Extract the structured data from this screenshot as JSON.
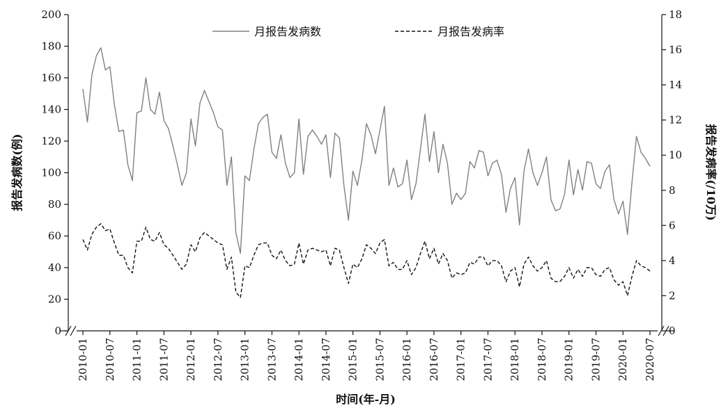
{
  "chart_data": {
    "type": "line",
    "xlabel": "时间(年-月)",
    "ylabel_left": "报告发病数(例)",
    "ylabel_right": "报告发病率(/10万)",
    "ylim_left": [
      0,
      200
    ],
    "ylim_right": [
      0,
      18
    ],
    "left_ticks": [
      "0",
      "20",
      "40",
      "60",
      "80",
      "100",
      "120",
      "140",
      "160",
      "180",
      "200"
    ],
    "right_ticks": [
      "0",
      "2",
      "4",
      "6",
      "8",
      "10",
      "12",
      "14",
      "16",
      "18"
    ],
    "x_tick_labels": [
      "2010-01",
      "2010-07",
      "2011-01",
      "2011-07",
      "2012-01",
      "2012-07",
      "2013-01",
      "2013-07",
      "2014-01",
      "2014-07",
      "2015-01",
      "2015-07",
      "2016-01",
      "2016-07",
      "2017-01",
      "2017-07",
      "2018-01",
      "2018-07",
      "2019-01",
      "2019-07",
      "2020-01",
      "2020-07"
    ],
    "legend_position": "top",
    "grid": false,
    "series": [
      {
        "name": "月报告发病数",
        "axis": "left",
        "style": "solid",
        "color": "#808080",
        "values": [
          153,
          132,
          162,
          174,
          179,
          165,
          167,
          143,
          126,
          127,
          105,
          95,
          138,
          139,
          160,
          140,
          137,
          151,
          133,
          128,
          117,
          105,
          92,
          100,
          134,
          117,
          144,
          152,
          145,
          138,
          129,
          127,
          92,
          110,
          62,
          49,
          98,
          95,
          115,
          131,
          135,
          137,
          113,
          109,
          124,
          106,
          97,
          100,
          134,
          99,
          123,
          127,
          123,
          118,
          124,
          97,
          125,
          122,
          92,
          70,
          101,
          92,
          108,
          131,
          124,
          112,
          127,
          142,
          92,
          103,
          91,
          93,
          108,
          83,
          93,
          115,
          137,
          107,
          126,
          100,
          118,
          106,
          80,
          87,
          83,
          87,
          107,
          103,
          114,
          113,
          98,
          106,
          108,
          99,
          75,
          90,
          97,
          67,
          101,
          115,
          100,
          92,
          100,
          110,
          83,
          76,
          77,
          86,
          108,
          86,
          102,
          89,
          107,
          106,
          93,
          90,
          101,
          105,
          83,
          74,
          82,
          61,
          94,
          123,
          113,
          109,
          104
        ]
      },
      {
        "name": "月报告发病率",
        "axis": "right",
        "style": "dashed",
        "color": "#111111",
        "values": [
          5.2,
          4.6,
          5.5,
          5.9,
          6.1,
          5.7,
          5.8,
          5.0,
          4.3,
          4.3,
          3.6,
          3.3,
          5.1,
          5.1,
          5.9,
          5.2,
          5.1,
          5.6,
          4.9,
          4.7,
          4.3,
          3.9,
          3.5,
          3.8,
          4.9,
          4.5,
          5.3,
          5.6,
          5.4,
          5.2,
          5.0,
          4.9,
          3.5,
          4.2,
          2.2,
          1.9,
          3.7,
          3.6,
          4.3,
          4.9,
          5.0,
          5.0,
          4.3,
          4.1,
          4.6,
          4.0,
          3.7,
          3.8,
          5.0,
          3.8,
          4.6,
          4.7,
          4.6,
          4.5,
          4.6,
          3.7,
          4.7,
          4.6,
          3.6,
          2.7,
          3.8,
          3.6,
          4.1,
          4.9,
          4.7,
          4.4,
          5.0,
          5.2,
          3.7,
          3.9,
          3.5,
          3.5,
          4.0,
          3.2,
          3.6,
          4.4,
          5.1,
          4.1,
          4.7,
          3.8,
          4.4,
          4.0,
          3.0,
          3.3,
          3.2,
          3.3,
          3.9,
          3.8,
          4.2,
          4.2,
          3.7,
          4.0,
          4.0,
          3.7,
          2.8,
          3.4,
          3.6,
          2.5,
          3.8,
          4.2,
          3.7,
          3.4,
          3.6,
          4.0,
          3.0,
          2.8,
          2.8,
          3.1,
          3.6,
          3.0,
          3.5,
          3.1,
          3.6,
          3.6,
          3.2,
          3.1,
          3.5,
          3.6,
          2.9,
          2.6,
          2.8,
          2.0,
          3.1,
          4.0,
          3.7,
          3.6,
          3.4
        ]
      }
    ]
  }
}
